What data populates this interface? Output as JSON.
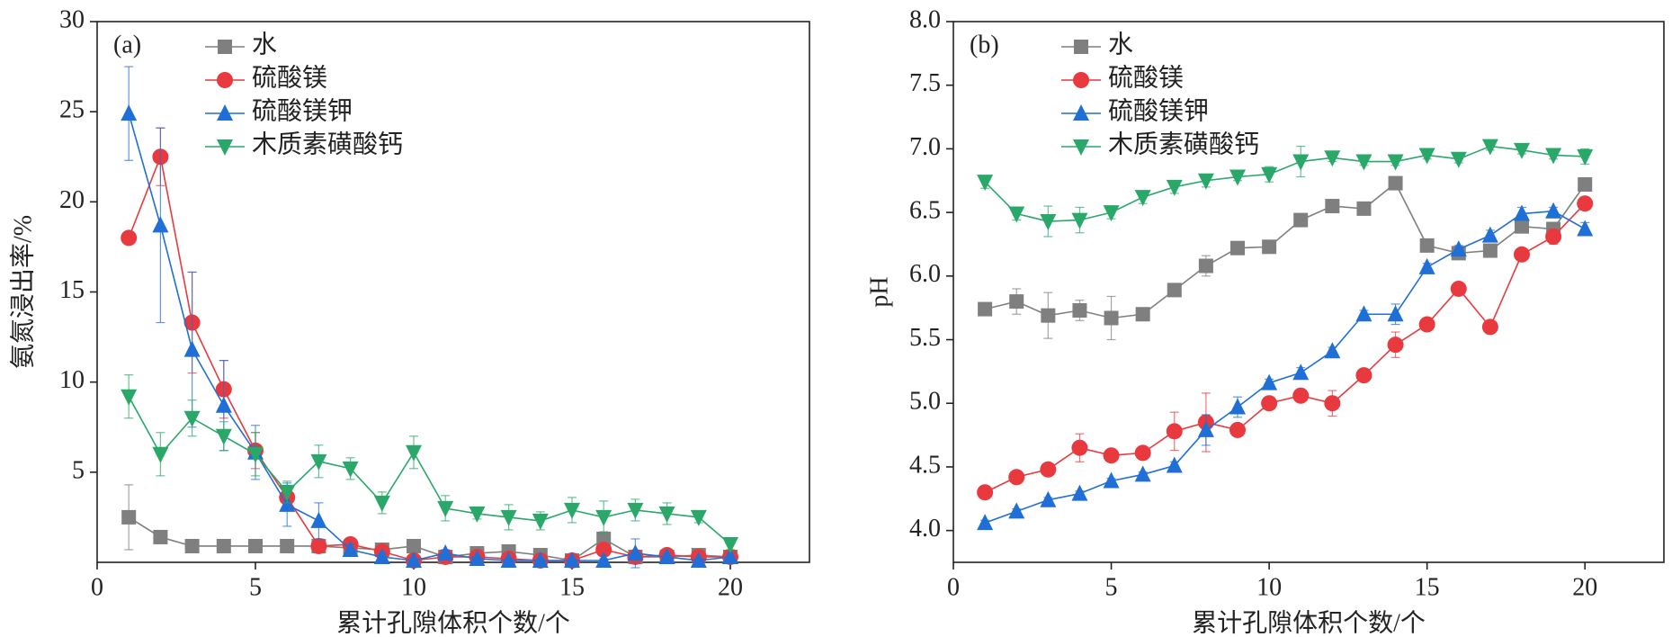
{
  "chart_data": [
    {
      "type": "line",
      "annotation": "(a)",
      "x_label": "累计孔隙体积个数/个",
      "y_label": "氨氮浸出率/%",
      "x": [
        1,
        2,
        3,
        4,
        5,
        6,
        7,
        8,
        9,
        10,
        11,
        12,
        13,
        14,
        15,
        16,
        17,
        18,
        19,
        20
      ],
      "xlim": [
        0,
        22.5
      ],
      "xticks": [
        0,
        5,
        10,
        15,
        20
      ],
      "ylim": [
        0,
        30
      ],
      "yticks": [
        5,
        10,
        15,
        20,
        25,
        30
      ],
      "legend": "upper-left",
      "series": [
        {
          "name": "水",
          "color": "#7f7f7f",
          "marker": "square",
          "values": [
            2.5,
            1.4,
            0.9,
            0.9,
            0.9,
            0.9,
            0.9,
            0.8,
            0.7,
            0.9,
            0.3,
            0.5,
            0.6,
            0.4,
            0.1,
            1.3,
            0.3,
            0.3,
            0.4,
            0.3
          ],
          "errors": [
            1.8,
            0.2,
            0.1,
            0.1,
            0.1,
            0.1,
            0.1,
            0.1,
            0.1,
            0.2,
            0.1,
            0.1,
            0.2,
            0.1,
            0.1,
            0.4,
            0.1,
            0.1,
            0.1,
            0.1
          ]
        },
        {
          "name": "硫酸镁",
          "color": "#e8393f",
          "marker": "circle",
          "values": [
            18.0,
            22.5,
            13.3,
            9.6,
            6.2,
            3.6,
            0.9,
            1.0,
            0.6,
            0.1,
            0.3,
            0.3,
            0.2,
            0.1,
            0.1,
            0.7,
            0.3,
            0.4,
            0.3,
            0.3
          ],
          "errors": [
            0.3,
            1.6,
            2.8,
            1.6,
            1.0,
            0.5,
            0.2,
            0.2,
            0.1,
            0.1,
            0.1,
            0.1,
            0.1,
            0.1,
            0.1,
            0.3,
            0.1,
            0.1,
            0.1,
            0.1
          ]
        },
        {
          "name": "硫酸镁钾",
          "color": "#1f6fd6",
          "marker": "triangle-up",
          "values": [
            24.9,
            18.7,
            11.8,
            8.7,
            6.1,
            3.2,
            2.3,
            0.7,
            0.3,
            0.1,
            0.5,
            0.2,
            0.1,
            0.1,
            0.1,
            0.1,
            0.5,
            0.3,
            0.1,
            0.3
          ],
          "errors": [
            2.6,
            5.4,
            4.3,
            2.5,
            1.5,
            1.2,
            1.0,
            0.3,
            0.2,
            0.1,
            0.2,
            0.1,
            0.1,
            0.1,
            0.1,
            0.1,
            0.8,
            0.2,
            0.1,
            0.2
          ]
        },
        {
          "name": "木质素磺酸钙",
          "color": "#2aa86a",
          "marker": "triangle-down",
          "values": [
            9.2,
            6.0,
            8.0,
            7.0,
            6.0,
            3.9,
            5.6,
            5.2,
            3.3,
            6.1,
            3.0,
            2.7,
            2.5,
            2.3,
            2.9,
            2.5,
            2.9,
            2.7,
            2.5,
            1.0
          ],
          "errors": [
            1.2,
            1.2,
            1.0,
            0.8,
            1.2,
            0.6,
            0.9,
            0.6,
            0.6,
            0.9,
            0.7,
            0.3,
            0.7,
            0.5,
            0.7,
            0.9,
            0.6,
            0.6,
            0.3,
            0.3
          ]
        }
      ]
    },
    {
      "type": "line",
      "annotation": "(b)",
      "x_label": "累计孔隙体积个数/个",
      "y_label": "pH",
      "x": [
        1,
        2,
        3,
        4,
        5,
        6,
        7,
        8,
        9,
        10,
        11,
        12,
        13,
        14,
        15,
        16,
        17,
        18,
        19,
        20
      ],
      "xlim": [
        0,
        22.5
      ],
      "xticks": [
        0,
        5,
        10,
        15,
        20
      ],
      "ylim": [
        3.75,
        8.0
      ],
      "yticks": [
        {
          "value": 4,
          "label": "4.0"
        },
        4.5,
        {
          "value": 5,
          "label": "5.0"
        },
        5.5,
        {
          "value": 6,
          "label": "6.0"
        },
        6.5,
        {
          "value": 7,
          "label": "7.0"
        },
        7.5,
        {
          "value": 8,
          "label": "8.0"
        }
      ],
      "legend": "upper-left",
      "series": [
        {
          "name": "水",
          "color": "#7f7f7f",
          "marker": "square",
          "values": [
            5.74,
            5.8,
            5.69,
            5.73,
            5.67,
            5.7,
            5.89,
            6.08,
            6.22,
            6.23,
            6.44,
            6.55,
            6.53,
            6.73,
            6.24,
            6.18,
            6.2,
            6.39,
            6.37,
            6.72
          ],
          "errors": [
            0.04,
            0.1,
            0.18,
            0.08,
            0.17,
            0.03,
            0.03,
            0.08,
            0.03,
            0.03,
            0.03,
            0.03,
            0.03,
            0.04,
            0.03,
            0.03,
            0.03,
            0.04,
            0.03,
            0.03
          ]
        },
        {
          "name": "硫酸镁",
          "color": "#e8393f",
          "marker": "circle",
          "values": [
            4.3,
            4.42,
            4.48,
            4.65,
            4.59,
            4.61,
            4.78,
            4.85,
            4.79,
            5.0,
            5.06,
            5.0,
            5.22,
            5.46,
            5.62,
            5.9,
            5.6,
            6.17,
            6.31,
            6.57
          ],
          "errors": [
            0.03,
            0.05,
            0.04,
            0.11,
            0.04,
            0.04,
            0.15,
            0.23,
            0.04,
            0.04,
            0.04,
            0.1,
            0.04,
            0.1,
            0.04,
            0.03,
            0.03,
            0.04,
            0.06,
            0.05
          ]
        },
        {
          "name": "硫酸镁钾",
          "color": "#1f6fd6",
          "marker": "triangle-up",
          "values": [
            4.06,
            4.15,
            4.24,
            4.29,
            4.39,
            4.44,
            4.51,
            4.79,
            4.97,
            5.16,
            5.24,
            5.41,
            5.7,
            5.7,
            6.07,
            6.21,
            6.32,
            6.49,
            6.51,
            6.37
          ],
          "errors": [
            0.02,
            0.02,
            0.02,
            0.02,
            0.02,
            0.02,
            0.03,
            0.12,
            0.08,
            0.03,
            0.04,
            0.03,
            0.03,
            0.08,
            0.03,
            0.03,
            0.04,
            0.05,
            0.03,
            0.05
          ]
        },
        {
          "name": "木质素磺酸钙",
          "color": "#2aa86a",
          "marker": "triangle-down",
          "values": [
            6.74,
            6.49,
            6.43,
            6.44,
            6.5,
            6.62,
            6.7,
            6.75,
            6.78,
            6.8,
            6.9,
            6.93,
            6.9,
            6.9,
            6.95,
            6.92,
            7.02,
            6.99,
            6.95,
            6.94
          ],
          "errors": [
            0.05,
            0.05,
            0.12,
            0.1,
            0.05,
            0.05,
            0.05,
            0.05,
            0.03,
            0.06,
            0.12,
            0.03,
            0.03,
            0.03,
            0.03,
            0.03,
            0.03,
            0.03,
            0.03,
            0.06
          ]
        }
      ]
    }
  ]
}
